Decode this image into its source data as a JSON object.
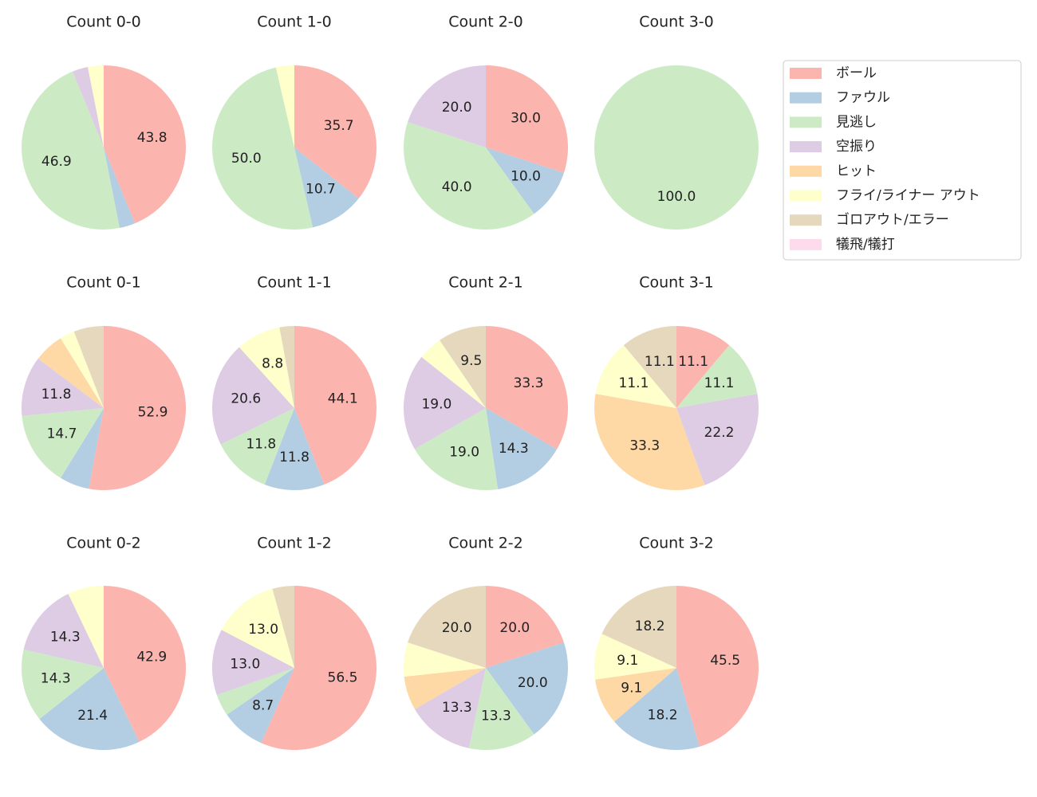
{
  "chart_data": [
    {
      "type": "pie",
      "title": "Count 0-0",
      "categories": [
        "ボール",
        "ファウル",
        "見逃し",
        "空振り",
        "ヒット",
        "フライ/ライナー アウト",
        "ゴロアウト/エラー",
        "犠飛/犠打"
      ],
      "colors": [
        "#fbb4ae",
        "#b3cde3",
        "#ccebc5",
        "#decbe4",
        "#fed9a6",
        "#ffffcc",
        "#e5d8bd",
        "#fddaec"
      ],
      "values": [
        43.8,
        3.1,
        46.9,
        3.1,
        0,
        3.1,
        0,
        0
      ],
      "value_labels": [
        "43.8",
        null,
        "46.9",
        null,
        null,
        null,
        null,
        null
      ]
    },
    {
      "type": "pie",
      "title": "Count 1-0",
      "categories": [
        "ボール",
        "ファウル",
        "見逃し",
        "空振り",
        "ヒット",
        "フライ/ライナー アウト",
        "ゴロアウト/エラー",
        "犠飛/犠打"
      ],
      "colors": [
        "#fbb4ae",
        "#b3cde3",
        "#ccebc5",
        "#decbe4",
        "#fed9a6",
        "#ffffcc",
        "#e5d8bd",
        "#fddaec"
      ],
      "values": [
        35.7,
        10.7,
        50.0,
        0,
        0,
        3.6,
        0,
        0
      ],
      "value_labels": [
        "35.7",
        "10.7",
        "50.0",
        null,
        null,
        null,
        null,
        null
      ]
    },
    {
      "type": "pie",
      "title": "Count 2-0",
      "categories": [
        "ボール",
        "ファウル",
        "見逃し",
        "空振り",
        "ヒット",
        "フライ/ライナー アウト",
        "ゴロアウト/エラー",
        "犠飛/犠打"
      ],
      "colors": [
        "#fbb4ae",
        "#b3cde3",
        "#ccebc5",
        "#decbe4",
        "#fed9a6",
        "#ffffcc",
        "#e5d8bd",
        "#fddaec"
      ],
      "values": [
        30.0,
        10.0,
        40.0,
        20.0,
        0,
        0,
        0,
        0
      ],
      "value_labels": [
        "30.0",
        "10.0",
        "40.0",
        "20.0",
        null,
        null,
        null,
        null
      ]
    },
    {
      "type": "pie",
      "title": "Count 3-0",
      "categories": [
        "ボール",
        "ファウル",
        "見逃し",
        "空振り",
        "ヒット",
        "フライ/ライナー アウト",
        "ゴロアウト/エラー",
        "犠飛/犠打"
      ],
      "colors": [
        "#fbb4ae",
        "#b3cde3",
        "#ccebc5",
        "#decbe4",
        "#fed9a6",
        "#ffffcc",
        "#e5d8bd",
        "#fddaec"
      ],
      "values": [
        0,
        0,
        100,
        0,
        0,
        0,
        0,
        0
      ],
      "value_labels": [
        null,
        null,
        "100.0",
        null,
        null,
        null,
        null,
        null
      ]
    },
    {
      "type": "pie",
      "title": "Count 0-1",
      "categories": [
        "ボール",
        "ファウル",
        "見逃し",
        "空振り",
        "ヒット",
        "フライ/ライナー アウト",
        "ゴロアウト/エラー",
        "犠飛/犠打"
      ],
      "colors": [
        "#fbb4ae",
        "#b3cde3",
        "#ccebc5",
        "#decbe4",
        "#fed9a6",
        "#ffffcc",
        "#e5d8bd",
        "#fddaec"
      ],
      "values": [
        52.9,
        5.9,
        14.7,
        11.8,
        5.9,
        2.9,
        5.9,
        0
      ],
      "value_labels": [
        "52.9",
        null,
        "14.7",
        "11.8",
        null,
        null,
        null,
        null
      ]
    },
    {
      "type": "pie",
      "title": "Count 1-1",
      "categories": [
        "ボール",
        "ファウル",
        "見逃し",
        "空振り",
        "ヒット",
        "フライ/ライナー アウト",
        "ゴロアウト/エラー",
        "犠飛/犠打"
      ],
      "colors": [
        "#fbb4ae",
        "#b3cde3",
        "#ccebc5",
        "#decbe4",
        "#fed9a6",
        "#ffffcc",
        "#e5d8bd",
        "#fddaec"
      ],
      "values": [
        44.1,
        11.8,
        11.8,
        20.6,
        0,
        8.8,
        2.9,
        0
      ],
      "value_labels": [
        "44.1",
        "11.8",
        "11.8",
        "20.6",
        null,
        "8.8",
        null,
        null
      ]
    },
    {
      "type": "pie",
      "title": "Count 2-1",
      "categories": [
        "ボール",
        "ファウル",
        "見逃し",
        "空振り",
        "ヒット",
        "フライ/ライナー アウト",
        "ゴロアウト/エラー",
        "犠飛/犠打"
      ],
      "colors": [
        "#fbb4ae",
        "#b3cde3",
        "#ccebc5",
        "#decbe4",
        "#fed9a6",
        "#ffffcc",
        "#e5d8bd",
        "#fddaec"
      ],
      "values": [
        33.3,
        14.3,
        19.0,
        19.0,
        0,
        4.8,
        9.5,
        0
      ],
      "value_labels": [
        "33.3",
        "14.3",
        "19.0",
        "19.0",
        null,
        null,
        "9.5",
        null
      ]
    },
    {
      "type": "pie",
      "title": "Count 3-1",
      "categories": [
        "ボール",
        "ファウル",
        "見逃し",
        "空振り",
        "ヒット",
        "フライ/ライナー アウト",
        "ゴロアウト/エラー",
        "犠飛/犠打"
      ],
      "colors": [
        "#fbb4ae",
        "#b3cde3",
        "#ccebc5",
        "#decbe4",
        "#fed9a6",
        "#ffffcc",
        "#e5d8bd",
        "#fddaec"
      ],
      "values": [
        11.1,
        0,
        11.1,
        22.2,
        33.3,
        11.1,
        11.1,
        0
      ],
      "value_labels": [
        "11.1",
        null,
        "11.1",
        "22.2",
        "33.3",
        "11.1",
        "11.1",
        null
      ]
    },
    {
      "type": "pie",
      "title": "Count 0-2",
      "categories": [
        "ボール",
        "ファウル",
        "見逃し",
        "空振り",
        "ヒット",
        "フライ/ライナー アウト",
        "ゴロアウト/エラー",
        "犠飛/犠打"
      ],
      "colors": [
        "#fbb4ae",
        "#b3cde3",
        "#ccebc5",
        "#decbe4",
        "#fed9a6",
        "#ffffcc",
        "#e5d8bd",
        "#fddaec"
      ],
      "values": [
        42.9,
        21.4,
        14.3,
        14.3,
        0,
        7.1,
        0,
        0
      ],
      "value_labels": [
        "42.9",
        "21.4",
        "14.3",
        "14.3",
        null,
        null,
        null,
        null
      ]
    },
    {
      "type": "pie",
      "title": "Count 1-2",
      "categories": [
        "ボール",
        "ファウル",
        "見逃し",
        "空振り",
        "ヒット",
        "フライ/ライナー アウト",
        "ゴロアウト/エラー",
        "犠飛/犠打"
      ],
      "colors": [
        "#fbb4ae",
        "#b3cde3",
        "#ccebc5",
        "#decbe4",
        "#fed9a6",
        "#ffffcc",
        "#e5d8bd",
        "#fddaec"
      ],
      "values": [
        56.5,
        8.7,
        4.3,
        13.0,
        0,
        13.0,
        4.3,
        0
      ],
      "value_labels": [
        "56.5",
        "8.7",
        null,
        "13.0",
        null,
        "13.0",
        null,
        null
      ]
    },
    {
      "type": "pie",
      "title": "Count 2-2",
      "categories": [
        "ボール",
        "ファウル",
        "見逃し",
        "空振り",
        "ヒット",
        "フライ/ライナー アウト",
        "ゴロアウト/エラー",
        "犠飛/犠打"
      ],
      "colors": [
        "#fbb4ae",
        "#b3cde3",
        "#ccebc5",
        "#decbe4",
        "#fed9a6",
        "#ffffcc",
        "#e5d8bd",
        "#fddaec"
      ],
      "values": [
        20.0,
        20.0,
        13.3,
        13.3,
        6.7,
        6.7,
        20.0,
        0
      ],
      "value_labels": [
        "20.0",
        "20.0",
        "13.3",
        "13.3",
        null,
        null,
        "20.0",
        null
      ]
    },
    {
      "type": "pie",
      "title": "Count 3-2",
      "categories": [
        "ボール",
        "ファウル",
        "見逃し",
        "空振り",
        "ヒット",
        "フライ/ライナー アウト",
        "ゴロアウト/エラー",
        "犠飛/犠打"
      ],
      "colors": [
        "#fbb4ae",
        "#b3cde3",
        "#ccebc5",
        "#decbe4",
        "#fed9a6",
        "#ffffcc",
        "#e5d8bd",
        "#fddaec"
      ],
      "values": [
        45.5,
        18.2,
        0,
        0,
        9.1,
        9.1,
        18.2,
        0
      ],
      "value_labels": [
        "45.5",
        "18.2",
        null,
        null,
        "9.1",
        "9.1",
        "18.2",
        null
      ]
    }
  ]
}
